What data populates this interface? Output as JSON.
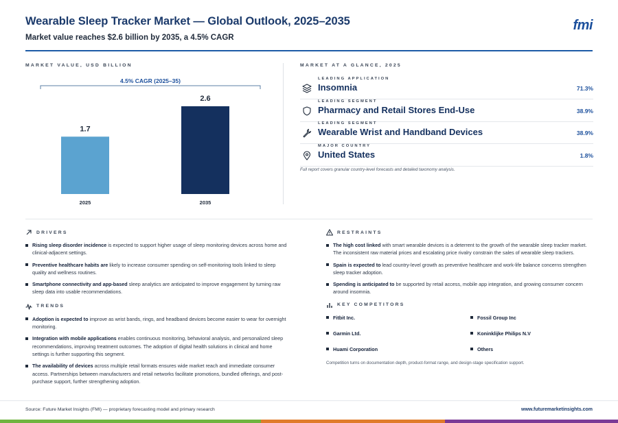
{
  "header": {
    "title": "Wearable Sleep Tracker Market — Global Outlook, 2025–2035",
    "subtitle": "Market value reaches $2.6 billion by 2035, a 4.5% CAGR",
    "logo": "fmi"
  },
  "chart_section_label": "MARKET VALUE, USD BILLION",
  "chart_data": {
    "type": "bar",
    "categories": [
      "2025",
      "2035"
    ],
    "values": [
      1.7,
      2.6
    ],
    "data_labels": [
      "1.7",
      "2.6"
    ],
    "annotation": "4.5% CAGR (2025–35)",
    "bar_colors": [
      "#5ba3d0",
      "#14305e"
    ],
    "ylim": [
      0,
      2.6
    ]
  },
  "glance": {
    "label": "MARKET AT A GLANCE, 2025",
    "rows": [
      {
        "category": "LEADING APPLICATION",
        "name": "Insomnia",
        "value": "71.3%",
        "icon": "layers-icon"
      },
      {
        "category": "LEADING SEGMENT",
        "name": "Pharmacy and Retail Stores End-Use",
        "value": "38.9%",
        "icon": "shield-icon"
      },
      {
        "category": "LEADING SEGMENT",
        "name": "Wearable Wrist and Handband Devices",
        "value": "38.9%",
        "icon": "wrench-icon"
      },
      {
        "category": "MAJOR COUNTRY",
        "name": "United States",
        "value": "1.8%",
        "icon": "location-pin-icon"
      }
    ],
    "note": "Full report covers granular country-level forecasts and detailed taxonomy analysis."
  },
  "drivers": {
    "label": "DRIVERS",
    "items": [
      {
        "lead": "Rising sleep disorder incidence",
        "rest": " is expected to support higher usage of sleep monitoring devices across home and clinical-adjacent settings."
      },
      {
        "lead": "Preventive healthcare habits are",
        "rest": " likely to increase consumer spending on self-monitoring tools linked to sleep quality and wellness routines."
      },
      {
        "lead": "Smartphone connectivity and app-based",
        "rest": " sleep analytics are anticipated to improve engagement by turning raw sleep data into usable recommendations."
      }
    ]
  },
  "trends": {
    "label": "TRENDS",
    "items": [
      {
        "lead": "Adoption is expected to",
        "rest": " improve as wrist bands, rings, and headband devices become easier to wear for overnight monitoring."
      },
      {
        "lead": "Integration with mobile applications",
        "rest": " enables continuous monitoring, behavioral analysis, and personalized sleep recommendations, improving treatment outcomes. The adoption of digital health solutions in clinical and home settings is further supporting this segment."
      },
      {
        "lead": "The availability of devices",
        "rest": " across multiple retail formats ensures wide market reach and immediate consumer access. Partnerships between manufacturers and retail networks facilitate promotions, bundled offerings, and post-purchase support, further strengthening adoption."
      }
    ]
  },
  "restraints": {
    "label": "RESTRAINTS",
    "items": [
      {
        "lead": "The high cost linked",
        "rest": " with smart wearable devices is a deterrent to the growth of the wearable sleep tracker market. The inconsistent raw material prices and escalating price rivalry constrain the sales of wearable sleep trackers."
      },
      {
        "lead": "Spain is expected to",
        "rest": " lead country-level growth as preventive healthcare and work-life balance concerns strengthen sleep tracker adoption."
      },
      {
        "lead": "Spending is anticipated to",
        "rest": " be supported by retail access, mobile app integration, and growing consumer concern around insomnia."
      }
    ]
  },
  "competitors": {
    "label": "KEY COMPETITORS",
    "items": [
      "Fitbit Inc.",
      "Fossil Group Inc",
      "Garmin Ltd.",
      "Koninklijke Philips N.V",
      "Huami Corporation",
      "Others"
    ],
    "note": "Competition turns on documentation depth, product-format range, and design-stage specification support."
  },
  "footer": {
    "source": "Source: Future Market Insights (FMI) — proprietary forecasting model and primary research",
    "url": "www.futuremarketinsights.com"
  },
  "colors": {
    "navy": "#14305e",
    "light_blue": "#5ba3d0",
    "accent_blue": "#1b5aa6",
    "bar_green": "#6fb43f",
    "bar_orange": "#e07b2a",
    "bar_purple": "#7b3a96"
  }
}
